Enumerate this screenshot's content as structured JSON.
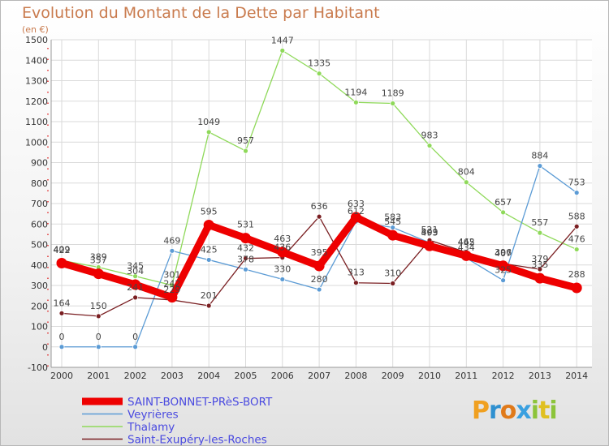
{
  "header": {
    "title": "Evolution du Montant de la Dette par Habitant",
    "subtitle": "(en €)"
  },
  "logo": {
    "text": "Proxiti",
    "letters": [
      {
        "ch": "P",
        "color": "#f0a020"
      },
      {
        "ch": "r",
        "color": "#2f90d0"
      },
      {
        "ch": "o",
        "color": "#e07a1a"
      },
      {
        "ch": "x",
        "color": "#3aa0e0"
      },
      {
        "ch": "i",
        "color": "#8cc43a"
      },
      {
        "ch": "t",
        "color": "#e0c020"
      },
      {
        "ch": "i",
        "color": "#8cc43a"
      }
    ]
  },
  "chart_data": {
    "type": "line",
    "title": "Evolution du Montant de la Dette par Habitant",
    "ylabel": "(en €)",
    "x": [
      "2000",
      "2001",
      "2002",
      "2003",
      "2004",
      "2005",
      "2006",
      "2007",
      "2008",
      "2009",
      "2010",
      "2011",
      "2012",
      "2013",
      "2014"
    ],
    "ylim": [
      -100,
      1500
    ],
    "yticks": [
      -100,
      0,
      100,
      200,
      300,
      400,
      500,
      600,
      700,
      800,
      900,
      1000,
      1100,
      1200,
      1300,
      1400,
      1500
    ],
    "grid": true,
    "legend": "bottom-left",
    "series": [
      {
        "name": "SAINT-BONNET-PRèS-BORT",
        "color": "#ee0000",
        "values": [
          409,
          357,
          304,
          242,
          595,
          531,
          463,
          395,
          633,
          545,
          493,
          445,
          396,
          335,
          288
        ]
      },
      {
        "name": "Veyrières",
        "color": "#5b9bd5",
        "values": [
          0,
          0,
          0,
          469,
          425,
          378,
          330,
          280,
          612,
          583,
          509,
          434,
          325,
          884,
          753
        ]
      },
      {
        "name": "Thalamy",
        "color": "#8fd95a",
        "values": [
          422,
          389,
          345,
          301,
          1049,
          957,
          1447,
          1335,
          1194,
          1189,
          983,
          804,
          657,
          557,
          476
        ]
      },
      {
        "name": "Saint-Exupéry-les-Roches",
        "color": "#7a1f22",
        "values": [
          164,
          150,
          241,
          229,
          201,
          432,
          436,
          636,
          313,
          310,
          521,
          462,
          407,
          379,
          588
        ]
      }
    ]
  }
}
